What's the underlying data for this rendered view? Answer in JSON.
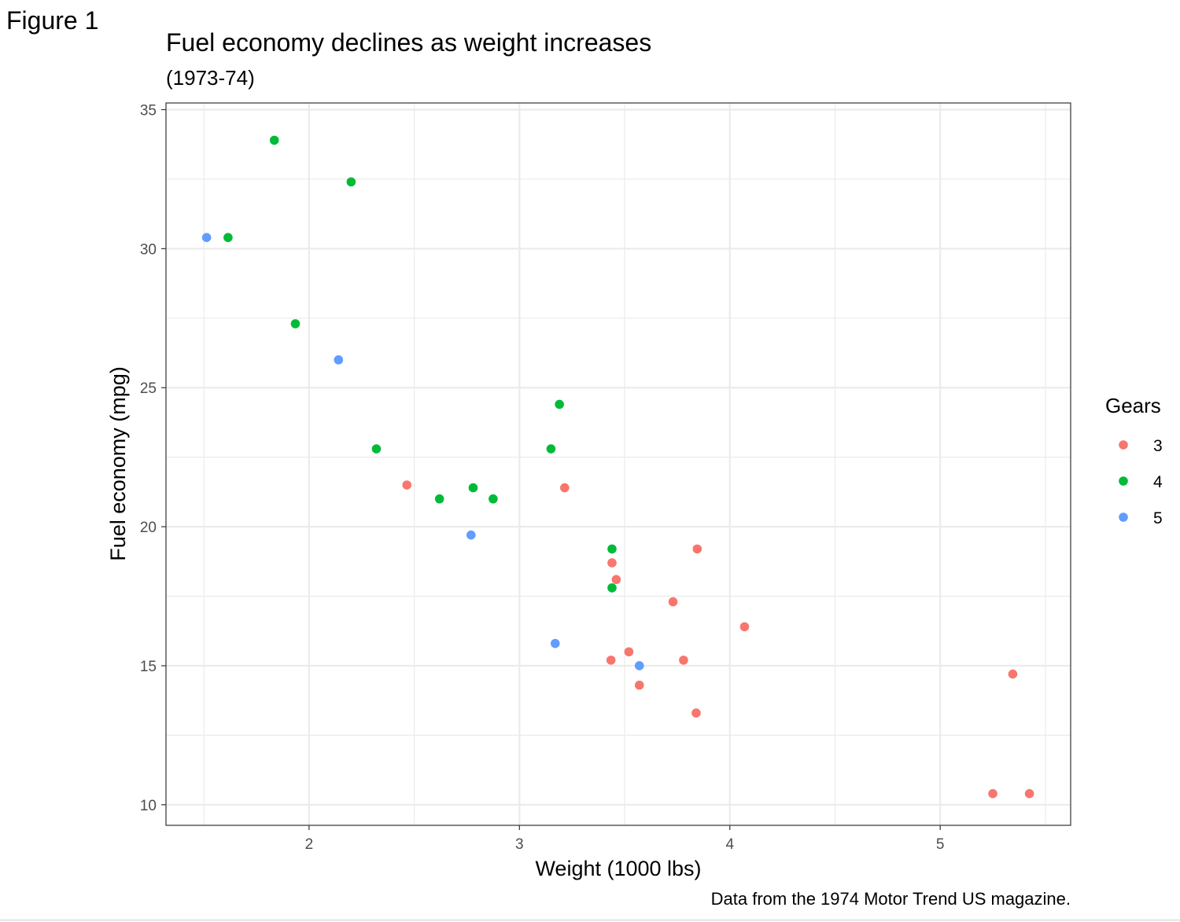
{
  "figure_label": "Figure 1",
  "caption": "Data from the 1974 Motor Trend US magazine.",
  "colors": {
    "3": "#F8766D",
    "4": "#00BA38",
    "5": "#619CFF",
    "grid": "#ebebeb",
    "panel_border": "#333333"
  },
  "chart_data": {
    "type": "scatter",
    "title": "Fuel economy declines as weight increases",
    "subtitle": "(1973-74)",
    "xlabel": "Weight (1000 lbs)",
    "ylabel": "Fuel economy (mpg)",
    "xlim": [
      1.32,
      5.62
    ],
    "ylim": [
      9.26,
      35.24
    ],
    "xticks": [
      2,
      3,
      4,
      5
    ],
    "yticks": [
      10,
      15,
      20,
      25,
      30,
      35
    ],
    "grid": true,
    "legend": {
      "title": "Gears",
      "placement": "right",
      "entries": [
        "3",
        "4",
        "5"
      ]
    },
    "series": [
      {
        "name": "3",
        "points": [
          [
            2.465,
            21.5
          ],
          [
            3.215,
            21.4
          ],
          [
            3.44,
            18.7
          ],
          [
            3.46,
            18.1
          ],
          [
            3.57,
            14.3
          ],
          [
            4.07,
            16.4
          ],
          [
            3.73,
            17.3
          ],
          [
            3.78,
            15.2
          ],
          [
            5.25,
            10.4
          ],
          [
            5.424,
            10.4
          ],
          [
            5.345,
            14.7
          ],
          [
            3.52,
            15.5
          ],
          [
            3.435,
            15.2
          ],
          [
            3.84,
            13.3
          ],
          [
            3.845,
            19.2
          ]
        ]
      },
      {
        "name": "4",
        "points": [
          [
            2.62,
            21.0
          ],
          [
            2.875,
            21.0
          ],
          [
            2.32,
            22.8
          ],
          [
            3.19,
            24.4
          ],
          [
            3.15,
            22.8
          ],
          [
            3.44,
            19.2
          ],
          [
            3.44,
            17.8
          ],
          [
            2.2,
            32.4
          ],
          [
            1.615,
            30.4
          ],
          [
            1.835,
            33.9
          ],
          [
            1.935,
            27.3
          ],
          [
            2.78,
            21.4
          ]
        ]
      },
      {
        "name": "5",
        "points": [
          [
            2.14,
            26.0
          ],
          [
            1.513,
            30.4
          ],
          [
            3.17,
            15.8
          ],
          [
            2.77,
            19.7
          ],
          [
            3.57,
            15.0
          ]
        ]
      }
    ]
  }
}
